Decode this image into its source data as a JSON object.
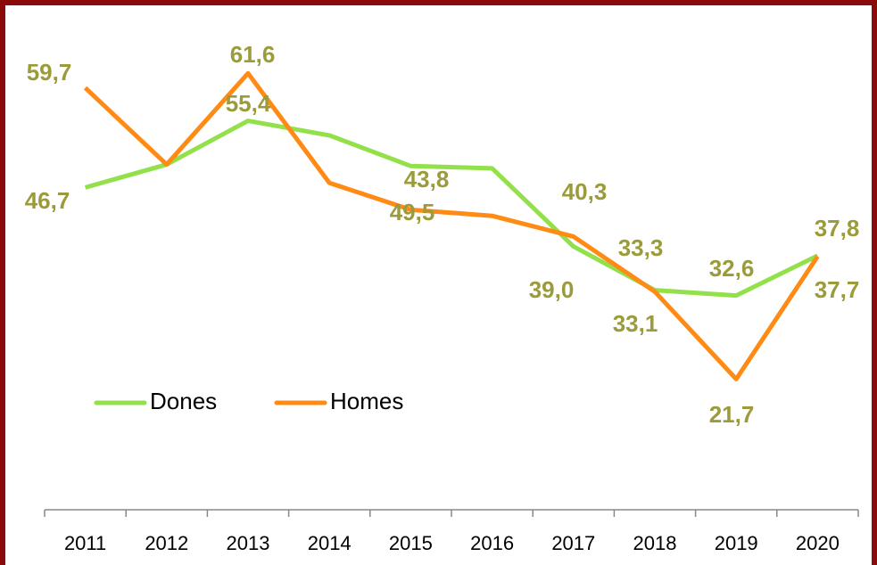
{
  "chart_data": {
    "type": "line",
    "categories": [
      "2011",
      "2012",
      "2013",
      "2014",
      "2015",
      "2016",
      "2017",
      "2018",
      "2019",
      "2020"
    ],
    "series": [
      {
        "name": "Dones",
        "color": "#92e04a",
        "values": [
          46.7,
          49.7,
          55.4,
          53.5,
          49.5,
          49.2,
          39.0,
          33.3,
          32.6,
          37.8
        ],
        "value_labels": [
          "46,7",
          null,
          "55,4",
          null,
          "49,5",
          null,
          "39,0",
          "33,3",
          "32,6",
          "37,8"
        ]
      },
      {
        "name": "Homes",
        "color": "#ff8a14",
        "values": [
          59.7,
          49.7,
          61.6,
          47.3,
          43.8,
          43.0,
          40.3,
          33.1,
          21.7,
          37.7
        ],
        "value_labels": [
          "59,7",
          null,
          "61,6",
          null,
          "43,8",
          null,
          "40,3",
          "33,1",
          "21,7",
          "37,7"
        ]
      }
    ],
    "ylim": [
      10,
      70
    ]
  }
}
